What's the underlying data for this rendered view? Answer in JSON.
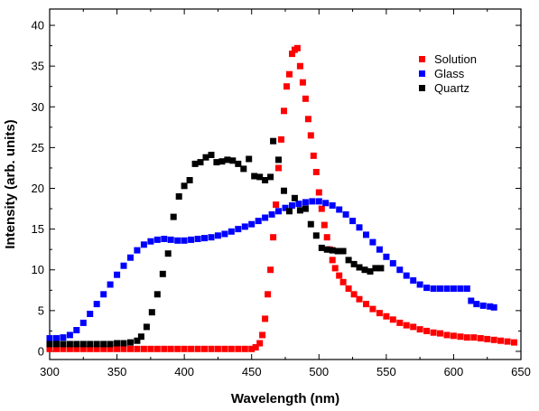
{
  "chart_data": {
    "type": "scatter",
    "title": "",
    "xlabel": "Wavelength (nm)",
    "ylabel": "Intensity (arb. units)",
    "xlim": [
      300,
      650
    ],
    "ylim": [
      -1,
      42
    ],
    "xticks": [
      300,
      350,
      400,
      450,
      500,
      550,
      600,
      650
    ],
    "yticks": [
      0,
      5,
      10,
      15,
      20,
      25,
      30,
      35,
      40
    ],
    "grid": false,
    "legend_position": "top-right",
    "series": [
      {
        "name": "Solution",
        "color": "#ff0000",
        "points": [
          [
            300,
            0.3
          ],
          [
            305,
            0.3
          ],
          [
            310,
            0.3
          ],
          [
            315,
            0.3
          ],
          [
            320,
            0.3
          ],
          [
            325,
            0.3
          ],
          [
            330,
            0.3
          ],
          [
            335,
            0.3
          ],
          [
            340,
            0.3
          ],
          [
            345,
            0.3
          ],
          [
            350,
            0.3
          ],
          [
            355,
            0.3
          ],
          [
            360,
            0.3
          ],
          [
            365,
            0.3
          ],
          [
            370,
            0.3
          ],
          [
            375,
            0.3
          ],
          [
            380,
            0.3
          ],
          [
            385,
            0.3
          ],
          [
            390,
            0.3
          ],
          [
            395,
            0.3
          ],
          [
            400,
            0.3
          ],
          [
            405,
            0.3
          ],
          [
            410,
            0.3
          ],
          [
            415,
            0.3
          ],
          [
            420,
            0.3
          ],
          [
            425,
            0.3
          ],
          [
            430,
            0.3
          ],
          [
            435,
            0.3
          ],
          [
            440,
            0.3
          ],
          [
            445,
            0.3
          ],
          [
            450,
            0.3
          ],
          [
            453,
            0.5
          ],
          [
            456,
            1
          ],
          [
            458,
            2
          ],
          [
            460,
            4
          ],
          [
            462,
            7
          ],
          [
            464,
            10
          ],
          [
            466,
            14
          ],
          [
            468,
            18
          ],
          [
            470,
            22.5
          ],
          [
            472,
            26
          ],
          [
            474,
            29.5
          ],
          [
            476,
            32.5
          ],
          [
            478,
            34
          ],
          [
            480,
            36.5
          ],
          [
            482,
            37
          ],
          [
            484,
            37.2
          ],
          [
            486,
            35
          ],
          [
            488,
            33
          ],
          [
            490,
            31
          ],
          [
            492,
            28.5
          ],
          [
            494,
            26.5
          ],
          [
            496,
            24
          ],
          [
            498,
            22
          ],
          [
            500,
            19.5
          ],
          [
            502,
            17.5
          ],
          [
            504,
            15.5
          ],
          [
            506,
            14
          ],
          [
            508,
            12.5
          ],
          [
            510,
            11.2
          ],
          [
            512,
            10.2
          ],
          [
            515,
            9.3
          ],
          [
            518,
            8.5
          ],
          [
            522,
            7.7
          ],
          [
            526,
            7
          ],
          [
            530,
            6.4
          ],
          [
            535,
            5.8
          ],
          [
            540,
            5.2
          ],
          [
            545,
            4.7
          ],
          [
            550,
            4.3
          ],
          [
            555,
            3.9
          ],
          [
            560,
            3.5
          ],
          [
            565,
            3.2
          ],
          [
            570,
            3
          ],
          [
            575,
            2.7
          ],
          [
            580,
            2.5
          ],
          [
            585,
            2.3
          ],
          [
            590,
            2.2
          ],
          [
            595,
            2
          ],
          [
            600,
            1.9
          ],
          [
            605,
            1.8
          ],
          [
            610,
            1.7
          ],
          [
            615,
            1.7
          ],
          [
            620,
            1.6
          ],
          [
            625,
            1.5
          ],
          [
            630,
            1.4
          ],
          [
            635,
            1.3
          ],
          [
            640,
            1.2
          ],
          [
            645,
            1.1
          ]
        ]
      },
      {
        "name": "Glass",
        "color": "#0000ff",
        "points": [
          [
            300,
            1.6
          ],
          [
            305,
            1.6
          ],
          [
            310,
            1.7
          ],
          [
            315,
            2
          ],
          [
            320,
            2.6
          ],
          [
            325,
            3.5
          ],
          [
            330,
            4.6
          ],
          [
            335,
            5.8
          ],
          [
            340,
            7
          ],
          [
            345,
            8.2
          ],
          [
            350,
            9.4
          ],
          [
            355,
            10.5
          ],
          [
            360,
            11.5
          ],
          [
            365,
            12.4
          ],
          [
            370,
            13.1
          ],
          [
            375,
            13.5
          ],
          [
            380,
            13.7
          ],
          [
            385,
            13.8
          ],
          [
            390,
            13.7
          ],
          [
            395,
            13.6
          ],
          [
            400,
            13.6
          ],
          [
            405,
            13.7
          ],
          [
            410,
            13.8
          ],
          [
            415,
            13.9
          ],
          [
            420,
            14
          ],
          [
            425,
            14.2
          ],
          [
            430,
            14.4
          ],
          [
            435,
            14.7
          ],
          [
            440,
            15
          ],
          [
            445,
            15.3
          ],
          [
            450,
            15.6
          ],
          [
            455,
            16
          ],
          [
            460,
            16.4
          ],
          [
            465,
            16.8
          ],
          [
            470,
            17.2
          ],
          [
            475,
            17.6
          ],
          [
            480,
            17.9
          ],
          [
            485,
            18.1
          ],
          [
            490,
            18.3
          ],
          [
            495,
            18.4
          ],
          [
            500,
            18.4
          ],
          [
            505,
            18.2
          ],
          [
            510,
            17.9
          ],
          [
            515,
            17.4
          ],
          [
            520,
            16.8
          ],
          [
            525,
            16
          ],
          [
            530,
            15.2
          ],
          [
            535,
            14.3
          ],
          [
            540,
            13.4
          ],
          [
            545,
            12.5
          ],
          [
            550,
            11.6
          ],
          [
            555,
            10.8
          ],
          [
            560,
            10
          ],
          [
            565,
            9.3
          ],
          [
            570,
            8.7
          ],
          [
            575,
            8.2
          ],
          [
            580,
            7.8
          ],
          [
            585,
            7.7
          ],
          [
            590,
            7.7
          ],
          [
            595,
            7.7
          ],
          [
            600,
            7.7
          ],
          [
            605,
            7.7
          ],
          [
            610,
            7.7
          ],
          [
            613,
            6.2
          ],
          [
            617,
            5.8
          ],
          [
            622,
            5.6
          ],
          [
            627,
            5.5
          ],
          [
            630,
            5.4
          ]
        ]
      },
      {
        "name": "Quartz",
        "color": "#000000",
        "points": [
          [
            300,
            0.9
          ],
          [
            305,
            0.9
          ],
          [
            310,
            0.9
          ],
          [
            315,
            0.9
          ],
          [
            320,
            0.9
          ],
          [
            325,
            0.9
          ],
          [
            330,
            0.9
          ],
          [
            335,
            0.9
          ],
          [
            340,
            0.9
          ],
          [
            345,
            0.9
          ],
          [
            350,
            1
          ],
          [
            355,
            1
          ],
          [
            360,
            1.1
          ],
          [
            365,
            1.3
          ],
          [
            368,
            1.8
          ],
          [
            372,
            3
          ],
          [
            376,
            4.8
          ],
          [
            380,
            7
          ],
          [
            384,
            9.5
          ],
          [
            388,
            12
          ],
          [
            392,
            16.5
          ],
          [
            396,
            19
          ],
          [
            400,
            20.3
          ],
          [
            404,
            21
          ],
          [
            408,
            23
          ],
          [
            412,
            23.2
          ],
          [
            416,
            23.8
          ],
          [
            420,
            24.1
          ],
          [
            424,
            23.2
          ],
          [
            428,
            23.3
          ],
          [
            432,
            23.5
          ],
          [
            436,
            23.4
          ],
          [
            440,
            23
          ],
          [
            444,
            22.4
          ],
          [
            448,
            23.6
          ],
          [
            452,
            21.5
          ],
          [
            456,
            21.4
          ],
          [
            460,
            21
          ],
          [
            464,
            21.4
          ],
          [
            466,
            25.8
          ],
          [
            470,
            23.5
          ],
          [
            474,
            19.7
          ],
          [
            478,
            17.2
          ],
          [
            482,
            18.8
          ],
          [
            486,
            17.3
          ],
          [
            490,
            17.5
          ],
          [
            494,
            15.6
          ],
          [
            498,
            14.2
          ],
          [
            502,
            12.7
          ],
          [
            506,
            12.5
          ],
          [
            510,
            12.4
          ],
          [
            514,
            12.3
          ],
          [
            518,
            12.3
          ],
          [
            522,
            11.2
          ],
          [
            526,
            10.7
          ],
          [
            530,
            10.3
          ],
          [
            534,
            10
          ],
          [
            538,
            9.8
          ],
          [
            542,
            10.2
          ],
          [
            546,
            10.2
          ]
        ]
      }
    ]
  }
}
